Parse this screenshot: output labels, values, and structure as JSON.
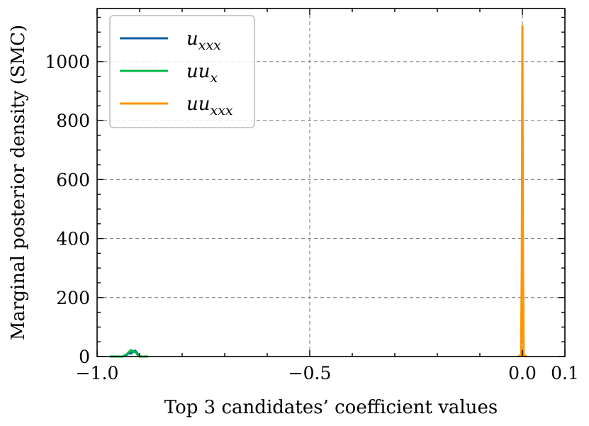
{
  "chart_data": {
    "type": "line",
    "title": "",
    "xlabel": "Top 3 candidates’ coefficient values",
    "ylabel": "Marginal posterior density (SMC)",
    "xlim": [
      -1.0,
      0.1
    ],
    "ylim": [
      0,
      1180
    ],
    "x_ticks": [
      -1.0,
      -0.5,
      0.0,
      0.1
    ],
    "x_tick_labels": [
      "−1.0",
      "−0.5",
      "0.0",
      "0.1"
    ],
    "y_ticks": [
      0,
      200,
      400,
      600,
      800,
      1000
    ],
    "y_tick_labels": [
      "0",
      "200",
      "400",
      "600",
      "800",
      "1000"
    ],
    "grid": true,
    "grid_style": "dashed",
    "legend_position": "top-left",
    "series": [
      {
        "name": "u_xxx",
        "legend_base": "u",
        "legend_sub": "xxx",
        "color": "#0C5DA5",
        "x": [
          -0.97,
          -0.94,
          -0.93,
          -0.925,
          -0.92,
          -0.915,
          -0.91,
          -0.905,
          -0.9,
          -0.88
        ],
        "y": [
          0,
          0,
          6,
          12,
          10,
          18,
          20,
          10,
          0,
          0
        ]
      },
      {
        "name": "uu_x",
        "legend_base": "uu",
        "legend_sub": "x",
        "color": "#00B945",
        "x": [
          -0.97,
          -0.94,
          -0.93,
          -0.925,
          -0.92,
          -0.915,
          -0.91,
          -0.905,
          -0.9,
          -0.88
        ],
        "y": [
          0,
          0,
          8,
          16,
          22,
          14,
          17,
          6,
          0,
          0
        ]
      },
      {
        "name": "uu_xxx",
        "legend_base": "uu",
        "legend_sub": "xxx",
        "color": "#FF9500",
        "x": [
          -0.01,
          -0.003,
          -0.0015,
          0.0,
          0.0015,
          0.003,
          0.01
        ],
        "y": [
          0,
          5,
          300,
          1120,
          300,
          5,
          0
        ]
      }
    ]
  }
}
